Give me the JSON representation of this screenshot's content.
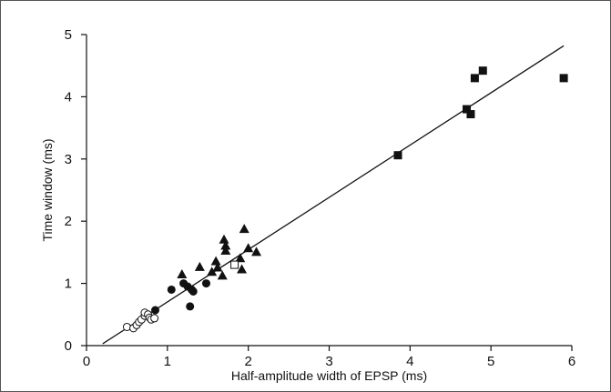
{
  "chart_data": {
    "type": "scatter",
    "title": "",
    "xlabel": "Half-amplitude width of EPSP (ms)",
    "ylabel": "Time window (ms)",
    "xlim": [
      0,
      6
    ],
    "ylim": [
      0,
      5
    ],
    "x_ticks": [
      "0",
      "1",
      "2",
      "3",
      "4",
      "5",
      "6"
    ],
    "y_ticks": [
      "0",
      "1",
      "2",
      "3",
      "4",
      "5"
    ],
    "grid": false,
    "legend": "none",
    "series": [
      {
        "marker": "open-circle",
        "points": [
          [
            0.5,
            0.3
          ],
          [
            0.58,
            0.28
          ],
          [
            0.62,
            0.33
          ],
          [
            0.65,
            0.38
          ],
          [
            0.68,
            0.42
          ],
          [
            0.72,
            0.48
          ],
          [
            0.72,
            0.53
          ],
          [
            0.76,
            0.5
          ],
          [
            0.78,
            0.45
          ],
          [
            0.8,
            0.42
          ],
          [
            0.84,
            0.44
          ]
        ]
      },
      {
        "marker": "filled-circle",
        "points": [
          [
            0.85,
            0.57
          ],
          [
            1.05,
            0.9
          ],
          [
            1.2,
            1.0
          ],
          [
            1.25,
            0.95
          ],
          [
            1.28,
            0.63
          ],
          [
            1.3,
            0.9
          ],
          [
            1.32,
            0.87
          ],
          [
            1.48,
            1.0
          ]
        ]
      },
      {
        "marker": "filled-triangle",
        "points": [
          [
            1.18,
            1.14
          ],
          [
            1.4,
            1.26
          ],
          [
            1.55,
            1.18
          ],
          [
            1.6,
            1.35
          ],
          [
            1.62,
            1.25
          ],
          [
            1.68,
            1.12
          ],
          [
            1.7,
            1.7
          ],
          [
            1.72,
            1.6
          ],
          [
            1.72,
            1.52
          ],
          [
            1.9,
            1.4
          ],
          [
            1.92,
            1.22
          ],
          [
            1.95,
            1.87
          ],
          [
            2.0,
            1.56
          ],
          [
            2.1,
            1.5
          ]
        ]
      },
      {
        "marker": "open-square",
        "points": [
          [
            1.83,
            1.3
          ]
        ]
      },
      {
        "marker": "filled-square",
        "points": [
          [
            3.85,
            3.06
          ],
          [
            4.7,
            3.8
          ],
          [
            4.75,
            3.72
          ],
          [
            4.8,
            4.3
          ],
          [
            4.9,
            4.42
          ],
          [
            5.9,
            4.3
          ]
        ]
      }
    ],
    "fit_line": {
      "x": [
        0.2,
        5.9
      ],
      "y": [
        0.03,
        4.82
      ]
    }
  }
}
